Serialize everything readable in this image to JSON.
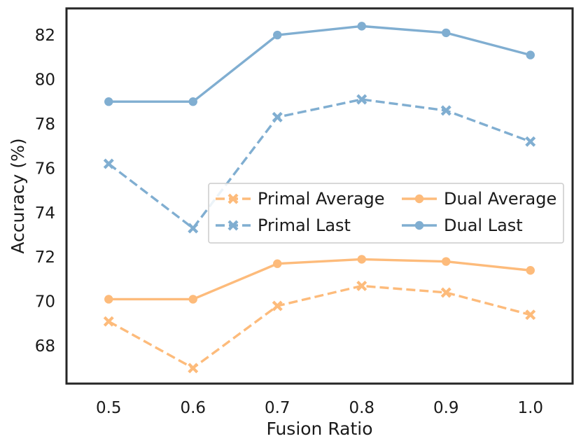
{
  "chart_data": {
    "type": "line",
    "xlabel": "Fusion Ratio",
    "ylabel": "Accuracy (%)",
    "x": [
      0.5,
      0.6,
      0.7,
      0.8,
      0.9,
      1.0
    ],
    "x_tick_labels": [
      "0.5",
      "0.6",
      "0.7",
      "0.8",
      "0.9",
      "1.0"
    ],
    "xlim": [
      0.45,
      1.05
    ],
    "y_ticks": [
      68,
      70,
      72,
      74,
      76,
      78,
      80,
      82
    ],
    "y_tick_labels": [
      "68",
      "70",
      "72",
      "74",
      "76",
      "78",
      "80",
      "82"
    ],
    "ylim": [
      66.3,
      83.2
    ],
    "grid": false,
    "legend": {
      "placement": "center-right",
      "columns": 2
    },
    "series": [
      {
        "name": "Primal Average",
        "color": "#fdbb7b",
        "style": "dashed",
        "marker": "x",
        "values": [
          69.1,
          67.0,
          69.8,
          70.7,
          70.4,
          69.4
        ]
      },
      {
        "name": "Dual Average",
        "color": "#fdbb7b",
        "style": "solid",
        "marker": "o",
        "values": [
          70.1,
          70.1,
          71.7,
          71.9,
          71.8,
          71.4
        ]
      },
      {
        "name": "Primal Last",
        "color": "#80aed1",
        "style": "dashed",
        "marker": "x",
        "values": [
          76.2,
          73.3,
          78.3,
          79.1,
          78.6,
          77.2
        ]
      },
      {
        "name": "Dual Last",
        "color": "#80aed1",
        "style": "solid",
        "marker": "o",
        "values": [
          79.0,
          79.0,
          82.0,
          82.4,
          82.1,
          81.1
        ]
      }
    ]
  }
}
